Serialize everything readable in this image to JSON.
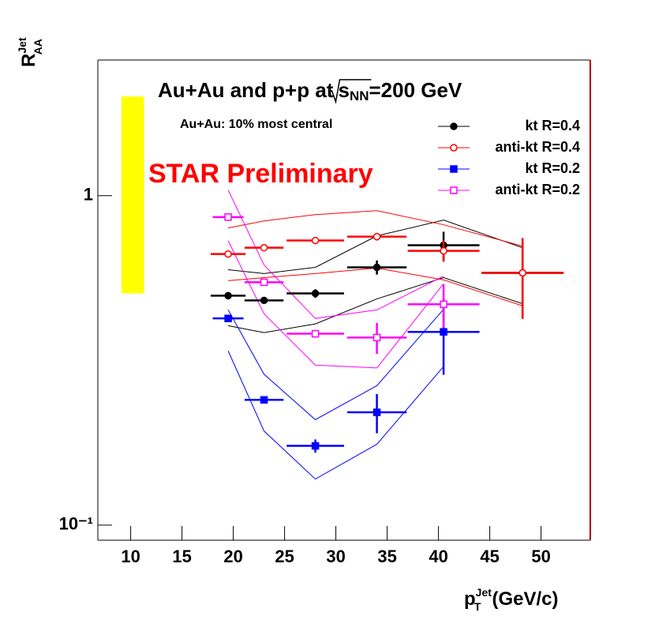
{
  "chart_data": {
    "type": "scatter",
    "title": "Au+Au and p+p at",
    "title_sqrt_arg": "s",
    "title_sqrt_sub": "NN",
    "title_end": "=200 GeV",
    "subtitle": "Au+Au: 10% most central",
    "annotation": "STAR Preliminary",
    "annotation_color": "#ff0000",
    "y_label": "R",
    "y_label_sup": "Jet",
    "y_label_sub": "AA",
    "x_label": "p",
    "x_label_sup": "Jet",
    "x_label_sub": "T",
    "x_label_end": "(GeV/c)",
    "log_y": true,
    "xlim": [
      6.8,
      54.8
    ],
    "ylim": [
      0.09,
      2.58
    ],
    "xticks": [
      10,
      15,
      20,
      25,
      30,
      35,
      40,
      45,
      50
    ],
    "yticks": [
      {
        "value": 0.1,
        "label": "10⁻¹"
      },
      1
    ],
    "legend": "top-right",
    "norm_band": {
      "x": [
        9.1,
        11.3
      ],
      "y": [
        0.505,
        2.0
      ],
      "color": "#ffff00"
    },
    "series": [
      {
        "name": "kt R=0.4",
        "color": "#000000",
        "marker": "circle",
        "filled": true,
        "x": [
          19.5,
          23,
          28,
          34,
          40.5,
          48.2
        ],
        "values": [
          0.497,
          0.481,
          0.505,
          0.606,
          0.707,
          0.583
        ],
        "xerr": [
          1.7,
          1.9,
          2.8,
          2.9,
          3.5,
          4
        ],
        "yerr": [
          0.01,
          0.01,
          0.015,
          0.03,
          0.07,
          0.16
        ],
        "band_upper": [
          0.596,
          0.58,
          0.606,
          0.755,
          0.843,
          0.695
        ],
        "band_lower": [
          0.403,
          0.384,
          0.408,
          0.486,
          0.564,
          0.47
        ]
      },
      {
        "name": "anti-kt R=0.4",
        "color": "#ff0000",
        "marker": "circle",
        "filled": false,
        "x": [
          19.5,
          23,
          28,
          34,
          40.5,
          48.2
        ],
        "values": [
          0.665,
          0.695,
          0.731,
          0.751,
          0.68,
          0.583
        ],
        "xerr": [
          1.7,
          1.9,
          2.8,
          2.9,
          3.5,
          4
        ],
        "yerr": [
          0.01,
          0.01,
          0.01,
          0.02,
          0.05,
          0.16
        ],
        "band_upper": [
          0.798,
          0.838,
          0.876,
          0.9,
          0.816,
          0.703
        ],
        "band_lower": [
          0.552,
          0.564,
          0.58,
          0.603,
          0.555,
          0.463
        ]
      },
      {
        "name": "kt R=0.2",
        "color": "#0000ff",
        "marker": "square",
        "filled": true,
        "x": [
          19.5,
          23,
          28,
          34,
          40.5
        ],
        "values": [
          0.424,
          0.24,
          0.174,
          0.22,
          0.386
        ],
        "xerr": [
          1.5,
          1.9,
          2.8,
          2.9,
          3.5
        ],
        "yerr": [
          0.01,
          0.005,
          0.008,
          0.03,
          0.1
        ],
        "band_upper": [
          0.45,
          0.287,
          0.209,
          0.265,
          0.452
        ],
        "band_lower": [
          0.338,
          0.193,
          0.138,
          0.176,
          0.303
        ]
      },
      {
        "name": "anti-kt R=0.2",
        "color": "#ff00ff",
        "marker": "square",
        "filled": false,
        "x": [
          19.5,
          23,
          28,
          34,
          40.5
        ],
        "values": [
          0.861,
          0.546,
          0.381,
          0.371,
          0.468
        ],
        "xerr": [
          1.5,
          1.9,
          2.8,
          2.9,
          3.5
        ],
        "yerr": [
          0.01,
          0.01,
          0.01,
          0.04,
          0.07
        ],
        "band_upper": [
          1.04,
          0.616,
          0.424,
          0.45,
          0.57
        ],
        "band_lower": [
          0.73,
          0.438,
          0.306,
          0.3,
          0.54
        ]
      }
    ]
  }
}
